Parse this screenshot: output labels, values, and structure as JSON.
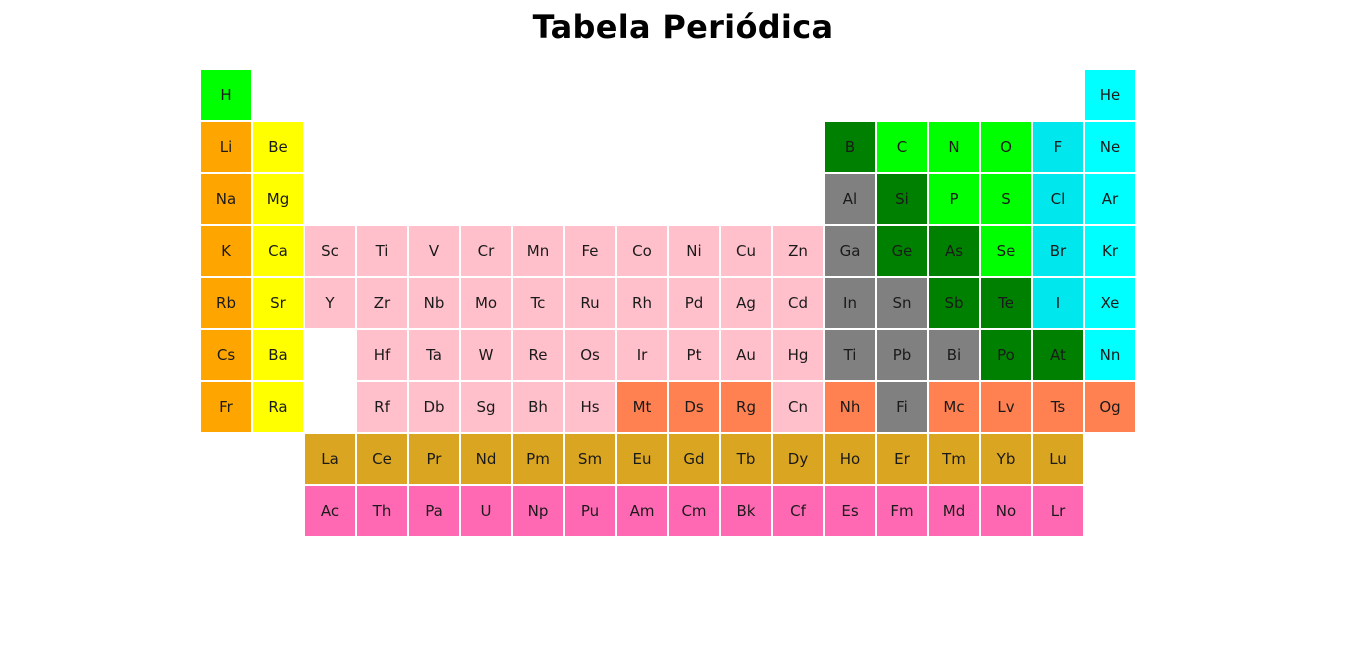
{
  "title": "Tabela Periódica",
  "colors": {
    "alkali": "#ffa500",
    "alkaline": "#ffff00",
    "transition": "#ffc0cb",
    "post_transition": "#808080",
    "metalloid": "#008000",
    "nonmetal": "#00ff00",
    "halogen": "#00e8ee",
    "noble": "#00ffff",
    "unknown": "#ff8050",
    "lanthanide": "#daa520",
    "actinide": "#ff69b4"
  },
  "elements": [
    {
      "symbol": "H",
      "row": 1,
      "col": 1,
      "category": "nonmetal"
    },
    {
      "symbol": "He",
      "row": 1,
      "col": 18,
      "category": "noble"
    },
    {
      "symbol": "Li",
      "row": 2,
      "col": 1,
      "category": "alkali"
    },
    {
      "symbol": "Be",
      "row": 2,
      "col": 2,
      "category": "alkaline"
    },
    {
      "symbol": "B",
      "row": 2,
      "col": 13,
      "category": "metalloid"
    },
    {
      "symbol": "C",
      "row": 2,
      "col": 14,
      "category": "nonmetal"
    },
    {
      "symbol": "N",
      "row": 2,
      "col": 15,
      "category": "nonmetal"
    },
    {
      "symbol": "O",
      "row": 2,
      "col": 16,
      "category": "nonmetal"
    },
    {
      "symbol": "F",
      "row": 2,
      "col": 17,
      "category": "halogen"
    },
    {
      "symbol": "Ne",
      "row": 2,
      "col": 18,
      "category": "noble"
    },
    {
      "symbol": "Na",
      "row": 3,
      "col": 1,
      "category": "alkali"
    },
    {
      "symbol": "Mg",
      "row": 3,
      "col": 2,
      "category": "alkaline"
    },
    {
      "symbol": "Al",
      "row": 3,
      "col": 13,
      "category": "post_transition"
    },
    {
      "symbol": "Si",
      "row": 3,
      "col": 14,
      "category": "metalloid"
    },
    {
      "symbol": "P",
      "row": 3,
      "col": 15,
      "category": "nonmetal"
    },
    {
      "symbol": "S",
      "row": 3,
      "col": 16,
      "category": "nonmetal"
    },
    {
      "symbol": "Cl",
      "row": 3,
      "col": 17,
      "category": "halogen"
    },
    {
      "symbol": "Ar",
      "row": 3,
      "col": 18,
      "category": "noble"
    },
    {
      "symbol": "K",
      "row": 4,
      "col": 1,
      "category": "alkali"
    },
    {
      "symbol": "Ca",
      "row": 4,
      "col": 2,
      "category": "alkaline"
    },
    {
      "symbol": "Sc",
      "row": 4,
      "col": 3,
      "category": "transition"
    },
    {
      "symbol": "Ti",
      "row": 4,
      "col": 4,
      "category": "transition"
    },
    {
      "symbol": "V",
      "row": 4,
      "col": 5,
      "category": "transition"
    },
    {
      "symbol": "Cr",
      "row": 4,
      "col": 6,
      "category": "transition"
    },
    {
      "symbol": "Mn",
      "row": 4,
      "col": 7,
      "category": "transition"
    },
    {
      "symbol": "Fe",
      "row": 4,
      "col": 8,
      "category": "transition"
    },
    {
      "symbol": "Co",
      "row": 4,
      "col": 9,
      "category": "transition"
    },
    {
      "symbol": "Ni",
      "row": 4,
      "col": 10,
      "category": "transition"
    },
    {
      "symbol": "Cu",
      "row": 4,
      "col": 11,
      "category": "transition"
    },
    {
      "symbol": "Zn",
      "row": 4,
      "col": 12,
      "category": "transition"
    },
    {
      "symbol": "Ga",
      "row": 4,
      "col": 13,
      "category": "post_transition"
    },
    {
      "symbol": "Ge",
      "row": 4,
      "col": 14,
      "category": "metalloid"
    },
    {
      "symbol": "As",
      "row": 4,
      "col": 15,
      "category": "metalloid"
    },
    {
      "symbol": "Se",
      "row": 4,
      "col": 16,
      "category": "nonmetal"
    },
    {
      "symbol": "Br",
      "row": 4,
      "col": 17,
      "category": "halogen"
    },
    {
      "symbol": "Kr",
      "row": 4,
      "col": 18,
      "category": "noble"
    },
    {
      "symbol": "Rb",
      "row": 5,
      "col": 1,
      "category": "alkali"
    },
    {
      "symbol": "Sr",
      "row": 5,
      "col": 2,
      "category": "alkaline"
    },
    {
      "symbol": "Y",
      "row": 5,
      "col": 3,
      "category": "transition"
    },
    {
      "symbol": "Zr",
      "row": 5,
      "col": 4,
      "category": "transition"
    },
    {
      "symbol": "Nb",
      "row": 5,
      "col": 5,
      "category": "transition"
    },
    {
      "symbol": "Mo",
      "row": 5,
      "col": 6,
      "category": "transition"
    },
    {
      "symbol": "Tc",
      "row": 5,
      "col": 7,
      "category": "transition"
    },
    {
      "symbol": "Ru",
      "row": 5,
      "col": 8,
      "category": "transition"
    },
    {
      "symbol": "Rh",
      "row": 5,
      "col": 9,
      "category": "transition"
    },
    {
      "symbol": "Pd",
      "row": 5,
      "col": 10,
      "category": "transition"
    },
    {
      "symbol": "Ag",
      "row": 5,
      "col": 11,
      "category": "transition"
    },
    {
      "symbol": "Cd",
      "row": 5,
      "col": 12,
      "category": "transition"
    },
    {
      "symbol": "In",
      "row": 5,
      "col": 13,
      "category": "post_transition"
    },
    {
      "symbol": "Sn",
      "row": 5,
      "col": 14,
      "category": "post_transition"
    },
    {
      "symbol": "Sb",
      "row": 5,
      "col": 15,
      "category": "metalloid"
    },
    {
      "symbol": "Te",
      "row": 5,
      "col": 16,
      "category": "metalloid"
    },
    {
      "symbol": "I",
      "row": 5,
      "col": 17,
      "category": "halogen"
    },
    {
      "symbol": "Xe",
      "row": 5,
      "col": 18,
      "category": "noble"
    },
    {
      "symbol": "Cs",
      "row": 6,
      "col": 1,
      "category": "alkali"
    },
    {
      "symbol": "Ba",
      "row": 6,
      "col": 2,
      "category": "alkaline"
    },
    {
      "symbol": "Hf",
      "row": 6,
      "col": 4,
      "category": "transition"
    },
    {
      "symbol": "Ta",
      "row": 6,
      "col": 5,
      "category": "transition"
    },
    {
      "symbol": "W",
      "row": 6,
      "col": 6,
      "category": "transition"
    },
    {
      "symbol": "Re",
      "row": 6,
      "col": 7,
      "category": "transition"
    },
    {
      "symbol": "Os",
      "row": 6,
      "col": 8,
      "category": "transition"
    },
    {
      "symbol": "Ir",
      "row": 6,
      "col": 9,
      "category": "transition"
    },
    {
      "symbol": "Pt",
      "row": 6,
      "col": 10,
      "category": "transition"
    },
    {
      "symbol": "Au",
      "row": 6,
      "col": 11,
      "category": "transition"
    },
    {
      "symbol": "Hg",
      "row": 6,
      "col": 12,
      "category": "transition"
    },
    {
      "symbol": "Ti",
      "row": 6,
      "col": 13,
      "category": "post_transition"
    },
    {
      "symbol": "Pb",
      "row": 6,
      "col": 14,
      "category": "post_transition"
    },
    {
      "symbol": "Bi",
      "row": 6,
      "col": 15,
      "category": "post_transition"
    },
    {
      "symbol": "Po",
      "row": 6,
      "col": 16,
      "category": "metalloid"
    },
    {
      "symbol": "At",
      "row": 6,
      "col": 17,
      "category": "metalloid"
    },
    {
      "symbol": "Nn",
      "row": 6,
      "col": 18,
      "category": "noble"
    },
    {
      "symbol": "Fr",
      "row": 7,
      "col": 1,
      "category": "alkali"
    },
    {
      "symbol": "Ra",
      "row": 7,
      "col": 2,
      "category": "alkaline"
    },
    {
      "symbol": "Rf",
      "row": 7,
      "col": 4,
      "category": "transition"
    },
    {
      "symbol": "Db",
      "row": 7,
      "col": 5,
      "category": "transition"
    },
    {
      "symbol": "Sg",
      "row": 7,
      "col": 6,
      "category": "transition"
    },
    {
      "symbol": "Bh",
      "row": 7,
      "col": 7,
      "category": "transition"
    },
    {
      "symbol": "Hs",
      "row": 7,
      "col": 8,
      "category": "transition"
    },
    {
      "symbol": "Mt",
      "row": 7,
      "col": 9,
      "category": "unknown"
    },
    {
      "symbol": "Ds",
      "row": 7,
      "col": 10,
      "category": "unknown"
    },
    {
      "symbol": "Rg",
      "row": 7,
      "col": 11,
      "category": "unknown"
    },
    {
      "symbol": "Cn",
      "row": 7,
      "col": 12,
      "category": "transition"
    },
    {
      "symbol": "Nh",
      "row": 7,
      "col": 13,
      "category": "unknown"
    },
    {
      "symbol": "Fi",
      "row": 7,
      "col": 14,
      "category": "post_transition"
    },
    {
      "symbol": "Mc",
      "row": 7,
      "col": 15,
      "category": "unknown"
    },
    {
      "symbol": "Lv",
      "row": 7,
      "col": 16,
      "category": "unknown"
    },
    {
      "symbol": "Ts",
      "row": 7,
      "col": 17,
      "category": "unknown"
    },
    {
      "symbol": "Og",
      "row": 7,
      "col": 18,
      "category": "unknown"
    },
    {
      "symbol": "La",
      "row": 8,
      "col": 3,
      "category": "lanthanide"
    },
    {
      "symbol": "Ce",
      "row": 8,
      "col": 4,
      "category": "lanthanide"
    },
    {
      "symbol": "Pr",
      "row": 8,
      "col": 5,
      "category": "lanthanide"
    },
    {
      "symbol": "Nd",
      "row": 8,
      "col": 6,
      "category": "lanthanide"
    },
    {
      "symbol": "Pm",
      "row": 8,
      "col": 7,
      "category": "lanthanide"
    },
    {
      "symbol": "Sm",
      "row": 8,
      "col": 8,
      "category": "lanthanide"
    },
    {
      "symbol": "Eu",
      "row": 8,
      "col": 9,
      "category": "lanthanide"
    },
    {
      "symbol": "Gd",
      "row": 8,
      "col": 10,
      "category": "lanthanide"
    },
    {
      "symbol": "Tb",
      "row": 8,
      "col": 11,
      "category": "lanthanide"
    },
    {
      "symbol": "Dy",
      "row": 8,
      "col": 12,
      "category": "lanthanide"
    },
    {
      "symbol": "Ho",
      "row": 8,
      "col": 13,
      "category": "lanthanide"
    },
    {
      "symbol": "Er",
      "row": 8,
      "col": 14,
      "category": "lanthanide"
    },
    {
      "symbol": "Tm",
      "row": 8,
      "col": 15,
      "category": "lanthanide"
    },
    {
      "symbol": "Yb",
      "row": 8,
      "col": 16,
      "category": "lanthanide"
    },
    {
      "symbol": "Lu",
      "row": 8,
      "col": 17,
      "category": "lanthanide"
    },
    {
      "symbol": "Ac",
      "row": 9,
      "col": 3,
      "category": "actinide"
    },
    {
      "symbol": "Th",
      "row": 9,
      "col": 4,
      "category": "actinide"
    },
    {
      "symbol": "Pa",
      "row": 9,
      "col": 5,
      "category": "actinide"
    },
    {
      "symbol": "U",
      "row": 9,
      "col": 6,
      "category": "actinide"
    },
    {
      "symbol": "Np",
      "row": 9,
      "col": 7,
      "category": "actinide"
    },
    {
      "symbol": "Pu",
      "row": 9,
      "col": 8,
      "category": "actinide"
    },
    {
      "symbol": "Am",
      "row": 9,
      "col": 9,
      "category": "actinide"
    },
    {
      "symbol": "Cm",
      "row": 9,
      "col": 10,
      "category": "actinide"
    },
    {
      "symbol": "Bk",
      "row": 9,
      "col": 11,
      "category": "actinide"
    },
    {
      "symbol": "Cf",
      "row": 9,
      "col": 12,
      "category": "actinide"
    },
    {
      "symbol": "Es",
      "row": 9,
      "col": 13,
      "category": "actinide"
    },
    {
      "symbol": "Fm",
      "row": 9,
      "col": 14,
      "category": "actinide"
    },
    {
      "symbol": "Md",
      "row": 9,
      "col": 15,
      "category": "actinide"
    },
    {
      "symbol": "No",
      "row": 9,
      "col": 16,
      "category": "actinide"
    },
    {
      "symbol": "Lr",
      "row": 9,
      "col": 17,
      "category": "actinide"
    }
  ]
}
